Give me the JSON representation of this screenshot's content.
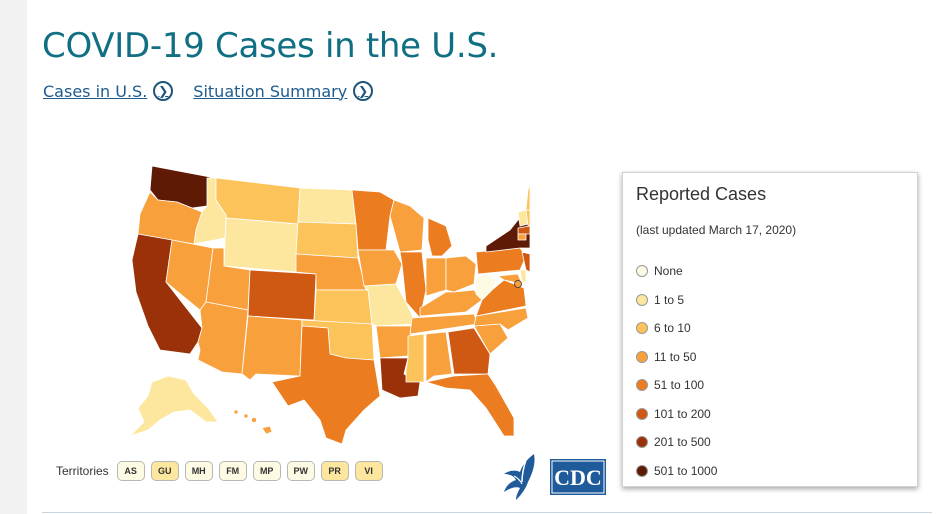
{
  "page": {
    "title": "COVID-19 Cases in the U.S.",
    "links": [
      {
        "label": "Cases in U.S. "
      },
      {
        "label": "Situation Summary "
      }
    ]
  },
  "colors": {
    "none": "#fdfbe3",
    "c1": "#fde79e",
    "c6": "#fcc35a",
    "c11": "#f8a03c",
    "c51": "#eb7c20",
    "c101": "#cf5813",
    "c201": "#9b3108",
    "c501": "#5f1a05",
    "title": "#106f83",
    "link": "#1e5b8e"
  },
  "legend": {
    "title": "Reported Cases",
    "subtitle": "(last updated March 17, 2020)",
    "items": [
      {
        "label": "None",
        "color": "#fdfbe3"
      },
      {
        "label": "1 to 5",
        "color": "#fde79e"
      },
      {
        "label": "6 to 10",
        "color": "#fcc35a"
      },
      {
        "label": "11 to 50",
        "color": "#f8a03c"
      },
      {
        "label": "51 to 100",
        "color": "#eb7c20"
      },
      {
        "label": "101 to 200",
        "color": "#cf5813"
      },
      {
        "label": "201 to 500",
        "color": "#9b3108"
      },
      {
        "label": "501 to 1000",
        "color": "#5f1a05"
      }
    ]
  },
  "territories": {
    "label": "Territories",
    "items": [
      {
        "code": "AS",
        "color": "#fdfbe3"
      },
      {
        "code": "GU",
        "color": "#fde79e"
      },
      {
        "code": "MH",
        "color": "#fdfbe3"
      },
      {
        "code": "FM",
        "color": "#fdfbe3"
      },
      {
        "code": "MP",
        "color": "#fdfbe3"
      },
      {
        "code": "PW",
        "color": "#fdfbe3"
      },
      {
        "code": "PR",
        "color": "#fde79e"
      },
      {
        "code": "VI",
        "color": "#fde79e"
      }
    ]
  },
  "logos": {
    "cdc_text": "CDC"
  },
  "states": {
    "WA": "c501",
    "OR": "c11",
    "CA": "c201",
    "ID": "c1",
    "NV": "c11",
    "MT": "c6",
    "WY": "c1",
    "UT": "c11",
    "AZ": "c11",
    "CO": "c101",
    "NM": "c11",
    "ND": "c1",
    "SD": "c6",
    "NE": "c11",
    "KS": "c6",
    "OK": "c6",
    "TX": "c51",
    "MN": "c51",
    "IA": "c11",
    "MO": "c1",
    "AR": "c11",
    "LA": "c201",
    "WI": "c11",
    "IL": "c51",
    "MI": "c51",
    "IN": "c11",
    "OH": "c11",
    "KY": "c11",
    "TN": "c11",
    "MS": "c6",
    "AL": "c11",
    "GA": "c101",
    "FL": "c51",
    "SC": "c11",
    "NC": "c11",
    "VA": "c51",
    "WV": "none",
    "MD": "c11",
    "PA": "c51",
    "NY": "c501",
    "NJ": "c101",
    "VT": "c1",
    "NH": "c6",
    "ME": "c6",
    "MA": "c101",
    "CT": "c11",
    "DE": "c1",
    "DC": "c11",
    "AK": "c1",
    "HI": "c11"
  }
}
